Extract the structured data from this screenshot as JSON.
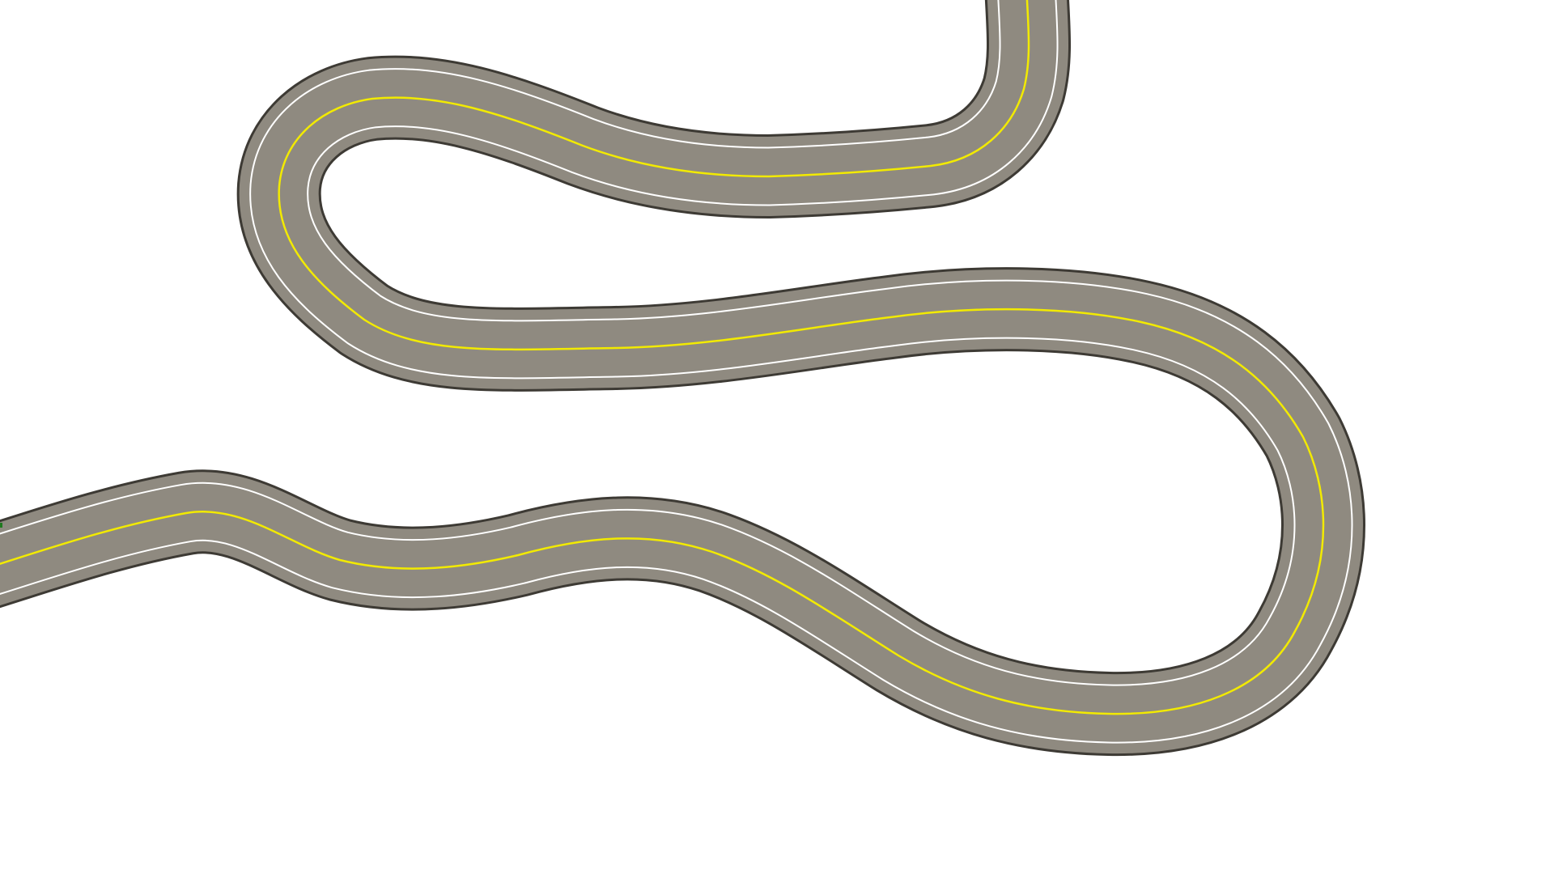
{
  "map": {
    "background_color": "#ffffff",
    "road": {
      "name": "winding-two-lane-road",
      "lanes": 2,
      "colors": {
        "outer_shoulder": "#3d3a34",
        "asphalt": "#8f8a80",
        "edge_line": "#ffffff",
        "center_line": "#f2ea00"
      }
    },
    "marker": {
      "name": "green-edge-marker",
      "color": "#1f7a1f"
    }
  }
}
